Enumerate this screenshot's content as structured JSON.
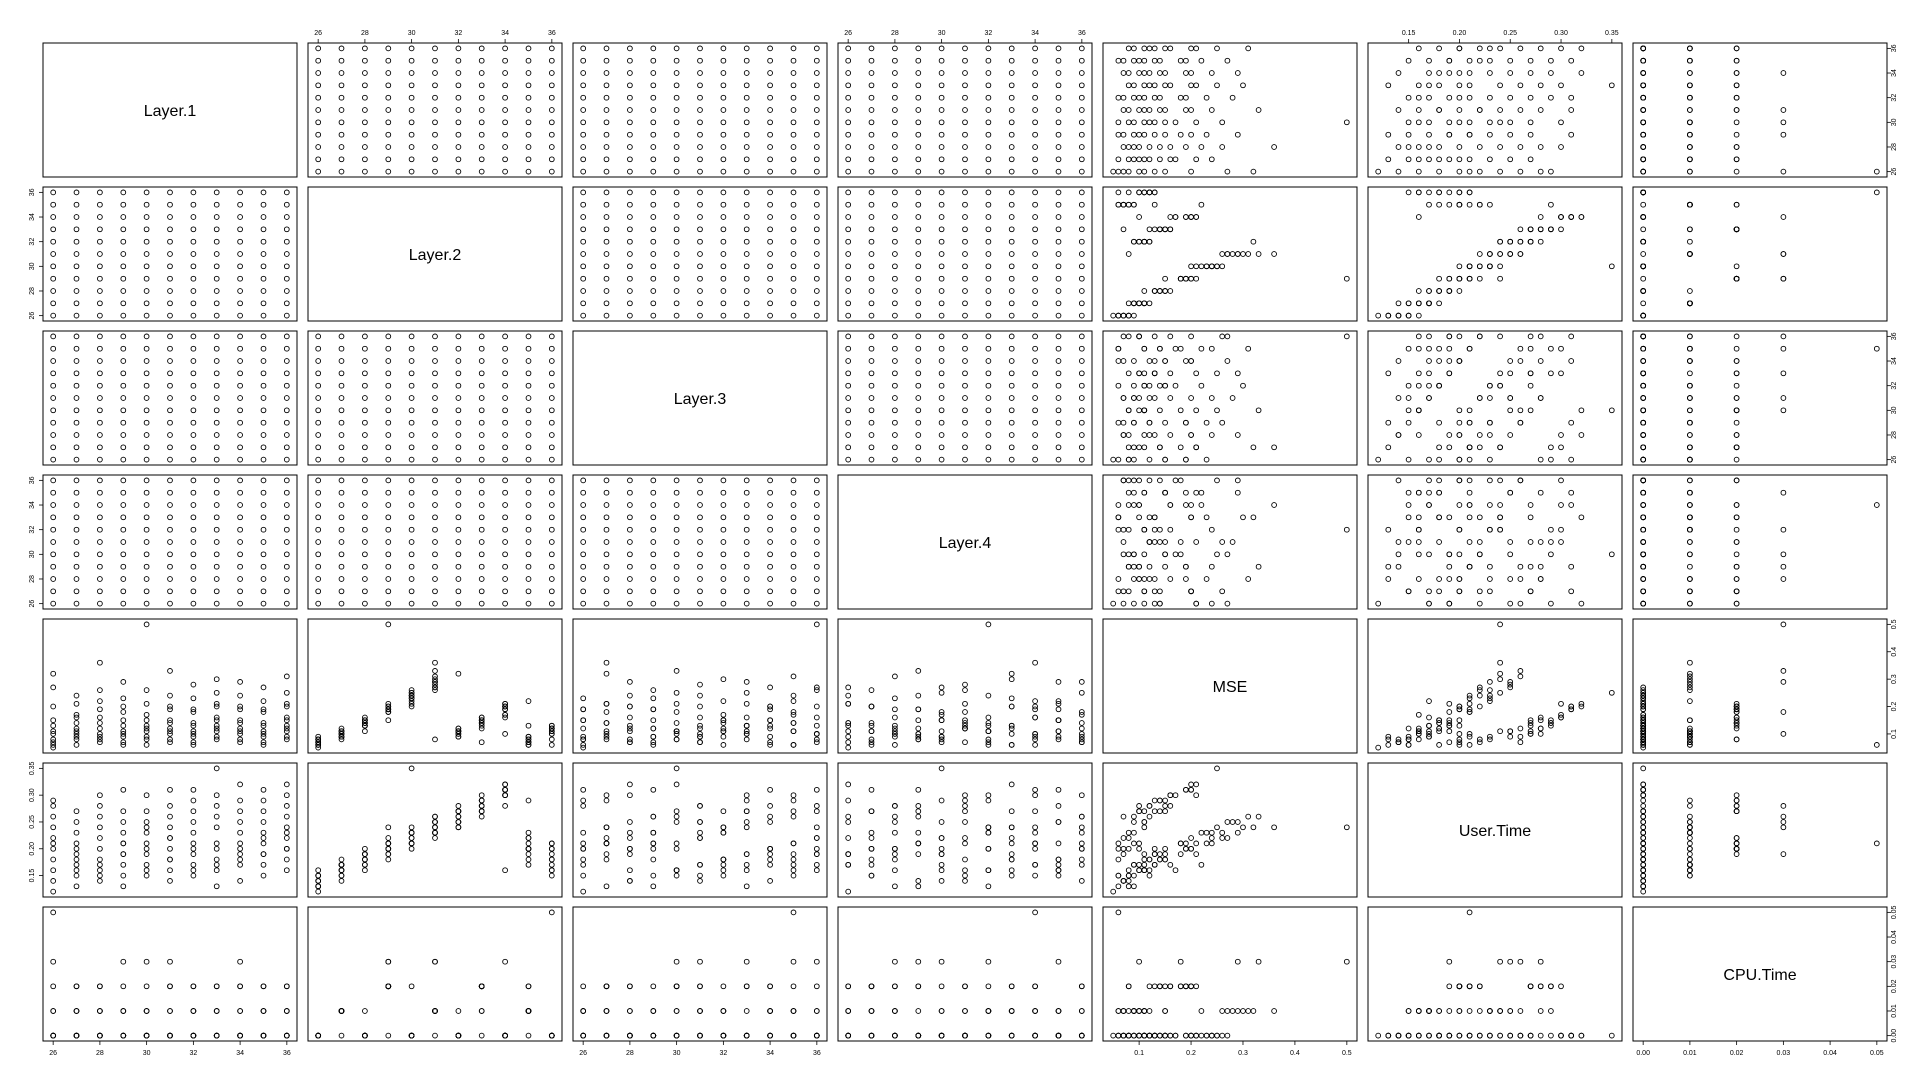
{
  "chart_data": {
    "type": "scatter",
    "variables": [
      {
        "name": "Layer.1",
        "range": [
          26,
          36
        ]
      },
      {
        "name": "Layer.2",
        "range": [
          26,
          36
        ]
      },
      {
        "name": "Layer.3",
        "range": [
          26,
          36
        ]
      },
      {
        "name": "Layer.4",
        "range": [
          26,
          36
        ]
      },
      {
        "name": "MSE",
        "range": [
          0.05,
          0.5
        ]
      },
      {
        "name": "User.Time",
        "range": [
          0.12,
          0.35
        ]
      },
      {
        "name": "CPU.Time",
        "range": [
          0,
          0.05
        ]
      }
    ],
    "axis_ticks": {
      "layer": {
        "values": [
          26,
          28,
          30,
          32,
          34,
          36
        ],
        "labels": [
          "26",
          "28",
          "30",
          "32",
          "34",
          "36"
        ]
      },
      "mse": {
        "values": [
          0.1,
          0.2,
          0.3,
          0.4,
          0.5
        ],
        "labels": [
          "0.1",
          "0.2",
          "0.3",
          "0.4",
          "0.5"
        ]
      },
      "user_time": {
        "values": [
          0.15,
          0.2,
          0.25,
          0.3,
          0.35
        ],
        "labels": [
          "0.15",
          "0.20",
          "0.25",
          "0.30",
          "0.35"
        ]
      },
      "cpu_time": {
        "values": [
          0,
          0.01,
          0.02,
          0.03,
          0.04,
          0.05
        ],
        "labels": [
          "0.00",
          "0.01",
          "0.02",
          "0.03",
          "0.04",
          "0.05"
        ]
      }
    },
    "top_axes": [
      {
        "column": 1,
        "ticks": "layer"
      },
      {
        "column": 3,
        "ticks": "layer"
      },
      {
        "column": 5,
        "ticks": "user_time"
      }
    ],
    "bottom_axes": [
      {
        "column": 0,
        "ticks": "layer"
      },
      {
        "column": 2,
        "ticks": "layer"
      },
      {
        "column": 4,
        "ticks": "mse"
      },
      {
        "column": 6,
        "ticks": "cpu_time"
      }
    ],
    "left_axes": [
      {
        "row": 1,
        "ticks": "layer"
      },
      {
        "row": 3,
        "ticks": "layer"
      },
      {
        "row": 5,
        "ticks": "user_time"
      }
    ],
    "right_axes": [
      {
        "row": 0,
        "ticks": "layer"
      },
      {
        "row": 2,
        "ticks": "layer"
      },
      {
        "row": 4,
        "ticks": "mse"
      },
      {
        "row": 6,
        "ticks": "cpu_time"
      }
    ],
    "points": [
      [
        26,
        26,
        26,
        26,
        0.05,
        0.12,
        0
      ],
      [
        26,
        27,
        28,
        29,
        0.08,
        0.14,
        0
      ],
      [
        26,
        28,
        30,
        32,
        0.11,
        0.16,
        0.01
      ],
      [
        26,
        29,
        32,
        35,
        0.15,
        0.18,
        0
      ],
      [
        26,
        30,
        34,
        27,
        0.2,
        0.2,
        0.02
      ],
      [
        26,
        31,
        36,
        30,
        0.27,
        0.22,
        0
      ],
      [
        26,
        32,
        27,
        33,
        0.32,
        0.24,
        0.01
      ],
      [
        26,
        33,
        29,
        36,
        0.07,
        0.26,
        0
      ],
      [
        26,
        34,
        31,
        28,
        0.1,
        0.28,
        0.03
      ],
      [
        26,
        35,
        33,
        31,
        0.13,
        0.29,
        0
      ],
      [
        26,
        36,
        35,
        34,
        0.06,
        0.21,
        0.05
      ],
      [
        27,
        26,
        27,
        28,
        0.09,
        0.13,
        0
      ],
      [
        27,
        27,
        29,
        31,
        0.12,
        0.15,
        0.01
      ],
      [
        27,
        28,
        31,
        34,
        0.16,
        0.17,
        0
      ],
      [
        27,
        29,
        33,
        26,
        0.21,
        0.19,
        0.02
      ],
      [
        27,
        30,
        35,
        29,
        0.24,
        0.21,
        0
      ],
      [
        27,
        31,
        26,
        32,
        0.08,
        0.23,
        0.01
      ],
      [
        27,
        32,
        28,
        35,
        0.11,
        0.25,
        0
      ],
      [
        27,
        33,
        30,
        27,
        0.14,
        0.27,
        0.02
      ],
      [
        27,
        34,
        32,
        30,
        0.17,
        0.16,
        0
      ],
      [
        27,
        35,
        34,
        33,
        0.06,
        0.18,
        0.01
      ],
      [
        27,
        36,
        36,
        36,
        0.1,
        0.2,
        0
      ],
      [
        28,
        26,
        28,
        30,
        0.07,
        0.14,
        0
      ],
      [
        28,
        27,
        30,
        33,
        0.1,
        0.16,
        0.01
      ],
      [
        28,
        28,
        32,
        36,
        0.14,
        0.18,
        0
      ],
      [
        28,
        29,
        34,
        28,
        0.19,
        0.2,
        0.02
      ],
      [
        28,
        30,
        36,
        31,
        0.26,
        0.22,
        0
      ],
      [
        28,
        31,
        27,
        34,
        0.36,
        0.24,
        0.01
      ],
      [
        28,
        32,
        29,
        26,
        0.09,
        0.26,
        0
      ],
      [
        28,
        33,
        31,
        29,
        0.12,
        0.28,
        0.02
      ],
      [
        28,
        34,
        33,
        32,
        0.16,
        0.3,
        0
      ],
      [
        28,
        35,
        35,
        35,
        0.22,
        0.17,
        0.01
      ],
      [
        28,
        36,
        26,
        27,
        0.08,
        0.15,
        0
      ],
      [
        29,
        26,
        29,
        32,
        0.06,
        0.13,
        0
      ],
      [
        29,
        27,
        31,
        35,
        0.09,
        0.15,
        0.01
      ],
      [
        29,
        28,
        33,
        27,
        0.13,
        0.17,
        0
      ],
      [
        29,
        29,
        35,
        30,
        0.18,
        0.19,
        0.03
      ],
      [
        29,
        30,
        26,
        33,
        0.23,
        0.21,
        0
      ],
      [
        29,
        31,
        28,
        36,
        0.29,
        0.23,
        0.01
      ],
      [
        29,
        32,
        30,
        28,
        0.11,
        0.25,
        0
      ],
      [
        29,
        33,
        32,
        31,
        0.15,
        0.27,
        0.02
      ],
      [
        29,
        34,
        34,
        34,
        0.2,
        0.31,
        0
      ],
      [
        29,
        35,
        36,
        26,
        0.07,
        0.19,
        0.01
      ],
      [
        29,
        36,
        27,
        29,
        0.1,
        0.21,
        0
      ],
      [
        30,
        26,
        30,
        34,
        0.08,
        0.15,
        0
      ],
      [
        30,
        27,
        32,
        26,
        0.11,
        0.17,
        0.01
      ],
      [
        30,
        28,
        34,
        29,
        0.15,
        0.19,
        0
      ],
      [
        30,
        29,
        36,
        32,
        0.5,
        0.24,
        0.03
      ],
      [
        30,
        30,
        27,
        35,
        0.21,
        0.21,
        0
      ],
      [
        30,
        31,
        29,
        27,
        0.26,
        0.23,
        0.01
      ],
      [
        30,
        32,
        31,
        30,
        0.09,
        0.25,
        0
      ],
      [
        30,
        33,
        33,
        33,
        0.13,
        0.27,
        0.02
      ],
      [
        30,
        34,
        35,
        36,
        0.17,
        0.3,
        0
      ],
      [
        30,
        35,
        26,
        28,
        0.06,
        0.2,
        0.01
      ],
      [
        30,
        36,
        28,
        31,
        0.12,
        0.16,
        0
      ],
      [
        31,
        26,
        31,
        36,
        0.07,
        0.14,
        0
      ],
      [
        31,
        27,
        33,
        28,
        0.1,
        0.16,
        0.01
      ],
      [
        31,
        28,
        35,
        31,
        0.14,
        0.18,
        0
      ],
      [
        31,
        29,
        26,
        34,
        0.19,
        0.2,
        0.02
      ],
      [
        31,
        30,
        28,
        26,
        0.24,
        0.22,
        0
      ],
      [
        31,
        31,
        30,
        29,
        0.33,
        0.26,
        0.03
      ],
      [
        31,
        32,
        32,
        32,
        0.11,
        0.24,
        0
      ],
      [
        31,
        33,
        34,
        35,
        0.15,
        0.28,
        0.01
      ],
      [
        31,
        34,
        36,
        27,
        0.2,
        0.31,
        0
      ],
      [
        31,
        35,
        27,
        30,
        0.08,
        0.22,
        0.02
      ],
      [
        31,
        36,
        29,
        33,
        0.12,
        0.18,
        0
      ],
      [
        32,
        26,
        32,
        27,
        0.06,
        0.15,
        0
      ],
      [
        32,
        27,
        34,
        30,
        0.09,
        0.17,
        0.01
      ],
      [
        32,
        28,
        36,
        33,
        0.13,
        0.19,
        0
      ],
      [
        32,
        29,
        27,
        36,
        0.18,
        0.21,
        0.02
      ],
      [
        32,
        30,
        29,
        28,
        0.23,
        0.23,
        0
      ],
      [
        32,
        31,
        31,
        31,
        0.28,
        0.25,
        0.01
      ],
      [
        32,
        32,
        33,
        34,
        0.1,
        0.27,
        0
      ],
      [
        32,
        33,
        35,
        26,
        0.14,
        0.29,
        0.02
      ],
      [
        32,
        34,
        26,
        29,
        0.19,
        0.31,
        0
      ],
      [
        32,
        35,
        28,
        32,
        0.07,
        0.2,
        0.01
      ],
      [
        32,
        36,
        30,
        35,
        0.11,
        0.16,
        0
      ],
      [
        33,
        26,
        33,
        29,
        0.08,
        0.13,
        0
      ],
      [
        33,
        27,
        35,
        32,
        0.11,
        0.16,
        0.01
      ],
      [
        33,
        28,
        26,
        35,
        0.15,
        0.18,
        0
      ],
      [
        33,
        29,
        28,
        27,
        0.2,
        0.2,
        0.02
      ],
      [
        33,
        30,
        30,
        30,
        0.25,
        0.35,
        0
      ],
      [
        33,
        31,
        32,
        33,
        0.3,
        0.24,
        0.01
      ],
      [
        33,
        32,
        34,
        36,
        0.12,
        0.26,
        0
      ],
      [
        33,
        33,
        36,
        28,
        0.16,
        0.28,
        0.02
      ],
      [
        33,
        34,
        27,
        31,
        0.21,
        0.3,
        0
      ],
      [
        33,
        35,
        29,
        34,
        0.09,
        0.21,
        0.01
      ],
      [
        33,
        36,
        31,
        26,
        0.13,
        0.17,
        0
      ],
      [
        34,
        26,
        34,
        31,
        0.07,
        0.14,
        0
      ],
      [
        34,
        27,
        36,
        34,
        0.1,
        0.17,
        0.01
      ],
      [
        34,
        28,
        27,
        26,
        0.14,
        0.19,
        0
      ],
      [
        34,
        29,
        29,
        29,
        0.19,
        0.21,
        0.02
      ],
      [
        34,
        30,
        31,
        32,
        0.24,
        0.23,
        0
      ],
      [
        34,
        31,
        33,
        35,
        0.29,
        0.25,
        0.03
      ],
      [
        34,
        32,
        35,
        27,
        0.11,
        0.27,
        0
      ],
      [
        34,
        33,
        26,
        30,
        0.15,
        0.29,
        0.01
      ],
      [
        34,
        34,
        28,
        33,
        0.2,
        0.32,
        0
      ],
      [
        34,
        35,
        30,
        36,
        0.08,
        0.2,
        0.02
      ],
      [
        34,
        36,
        32,
        28,
        0.12,
        0.18,
        0
      ],
      [
        35,
        26,
        35,
        33,
        0.06,
        0.15,
        0
      ],
      [
        35,
        27,
        26,
        36,
        0.09,
        0.17,
        0.01
      ],
      [
        35,
        28,
        28,
        28,
        0.13,
        0.19,
        0
      ],
      [
        35,
        29,
        30,
        31,
        0.18,
        0.21,
        0.02
      ],
      [
        35,
        30,
        32,
        34,
        0.22,
        0.23,
        0
      ],
      [
        35,
        31,
        34,
        26,
        0.27,
        0.25,
        0.01
      ],
      [
        35,
        32,
        36,
        29,
        0.1,
        0.27,
        0
      ],
      [
        35,
        33,
        27,
        32,
        0.14,
        0.29,
        0.02
      ],
      [
        35,
        34,
        29,
        35,
        0.19,
        0.31,
        0
      ],
      [
        35,
        35,
        31,
        27,
        0.07,
        0.22,
        0.01
      ],
      [
        35,
        36,
        33,
        30,
        0.11,
        0.19,
        0
      ],
      [
        36,
        26,
        36,
        35,
        0.08,
        0.16,
        0
      ],
      [
        36,
        27,
        27,
        27,
        0.11,
        0.18,
        0.01
      ],
      [
        36,
        28,
        29,
        30,
        0.15,
        0.2,
        0
      ],
      [
        36,
        29,
        31,
        33,
        0.2,
        0.22,
        0.02
      ],
      [
        36,
        30,
        33,
        36,
        0.25,
        0.24,
        0
      ],
      [
        36,
        31,
        35,
        28,
        0.31,
        0.26,
        0.01
      ],
      [
        36,
        32,
        26,
        31,
        0.12,
        0.28,
        0
      ],
      [
        36,
        33,
        28,
        34,
        0.16,
        0.3,
        0.02
      ],
      [
        36,
        34,
        30,
        26,
        0.21,
        0.32,
        0
      ],
      [
        36,
        35,
        32,
        29,
        0.09,
        0.23,
        0.01
      ],
      [
        36,
        36,
        34,
        32,
        0.13,
        0.2,
        0
      ]
    ]
  }
}
